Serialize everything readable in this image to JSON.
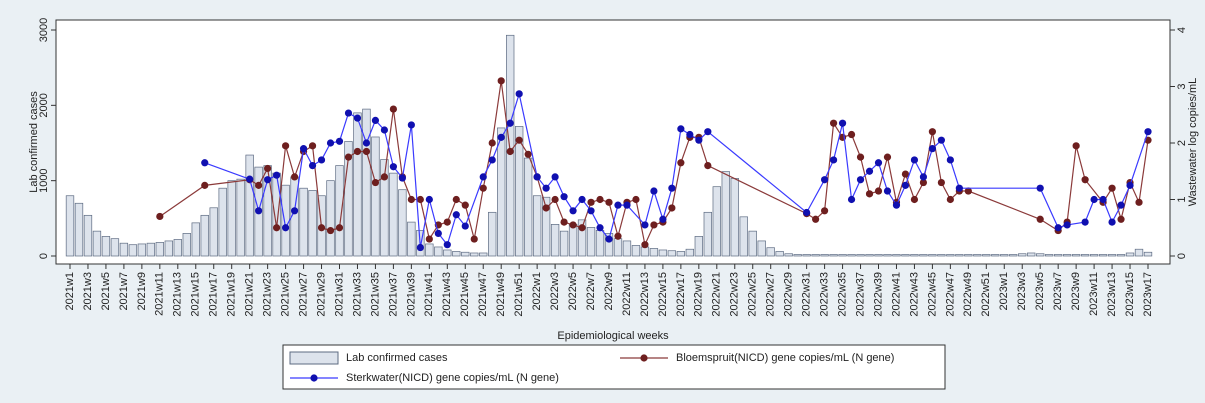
{
  "chart_data": {
    "type": "bar_line",
    "x_label": "Epidemiological weeks",
    "y_label": "Lab confirmed cases",
    "y2_label": "Wastewater log copies/mL",
    "legend": "bottom",
    "connect_gaps": true,
    "categories": [
      "2021w1",
      null,
      "2021w3",
      null,
      "2021w5",
      null,
      "2021w7",
      null,
      "2021w9",
      null,
      "2021w11",
      null,
      "2021w13",
      null,
      "2021w15",
      null,
      "2021w17",
      null,
      "2021w19",
      null,
      "2021w21",
      null,
      "2021w23",
      null,
      "2021w25",
      null,
      "2021w27",
      null,
      "2021w29",
      null,
      "2021w31",
      null,
      "2021w33",
      null,
      "2021w35",
      null,
      "2021w37",
      null,
      "2021w39",
      null,
      "2021w41",
      null,
      "2021w43",
      null,
      "2021w45",
      null,
      "2021w47",
      null,
      "2021w49",
      null,
      "2021w51",
      null,
      "2022w1",
      null,
      "2022w3",
      null,
      "2022w5",
      null,
      "2022w7",
      null,
      "2022w9",
      null,
      "2022w11",
      null,
      "2022w13",
      null,
      "2022w15",
      null,
      "2022w17",
      null,
      "2022w19",
      null,
      "2022w21",
      null,
      "2022w23",
      null,
      "2022w25",
      null,
      "2022w27",
      null,
      "2022w29",
      null,
      "2022w31",
      null,
      "2022w33",
      null,
      "2022w35",
      null,
      "2022w37",
      null,
      "2022w39",
      null,
      "2022w41",
      null,
      "2022w43",
      null,
      "2022w45",
      null,
      "2022w47",
      null,
      "2022w49",
      null,
      "2022w51",
      null,
      "2023w1",
      null,
      "2023w3",
      null,
      "2023w5",
      null,
      "2023w7",
      null,
      "2023w9",
      null,
      "2023w11",
      null,
      "2023w13",
      null,
      "2023w15",
      null,
      "2023w17"
    ],
    "series": [
      {
        "name": "Lab confirmed cases",
        "kind": "bar",
        "color": "#dde3ec",
        "edge": "#5d6b82",
        "values": [
          800,
          700,
          540,
          330,
          260,
          230,
          170,
          150,
          160,
          170,
          180,
          200,
          220,
          300,
          440,
          540,
          640,
          900,
          1000,
          1020,
          1340,
          1180,
          1200,
          1100,
          940,
          1050,
          900,
          870,
          800,
          1000,
          1200,
          1520,
          1900,
          1950,
          1580,
          1280,
          1100,
          880,
          450,
          340,
          160,
          120,
          80,
          60,
          50,
          40,
          40,
          580,
          1700,
          2930,
          1720,
          1300,
          800,
          780,
          420,
          330,
          420,
          480,
          380,
          340,
          300,
          230,
          200,
          140,
          120,
          100,
          80,
          70,
          60,
          90,
          260,
          580,
          920,
          1120,
          1030,
          520,
          330,
          200,
          110,
          60,
          30,
          20,
          20,
          20,
          20,
          20,
          20,
          20,
          20,
          20,
          20,
          20,
          20,
          20,
          20,
          20,
          20,
          20,
          20,
          20,
          20,
          20,
          20,
          20,
          20,
          20,
          30,
          40,
          30,
          20,
          20,
          20,
          20,
          20,
          20,
          20,
          20,
          20,
          40,
          90,
          50
        ]
      },
      {
        "name": "Bloemspruit(NICD) gene copies/mL (N gene)",
        "kind": "line",
        "axis": "y2",
        "color": "#8b3a3a",
        "marker": "#6e1f1f",
        "values": [
          null,
          null,
          null,
          null,
          null,
          null,
          null,
          null,
          null,
          null,
          0.7,
          null,
          null,
          null,
          null,
          1.25,
          null,
          null,
          null,
          null,
          1.35,
          1.25,
          1.55,
          0.5,
          1.95,
          1.4,
          1.85,
          1.95,
          0.5,
          0.45,
          0.5,
          1.75,
          1.85,
          1.85,
          1.3,
          1.4,
          2.6,
          1.4,
          1.0,
          1.0,
          0.3,
          0.55,
          0.6,
          1.0,
          0.9,
          0.3,
          1.2,
          2.0,
          3.1,
          1.85,
          2.05,
          1.8,
          1.4,
          0.85,
          1.0,
          0.6,
          0.55,
          0.5,
          0.95,
          1.0,
          0.95,
          0.35,
          0.95,
          1.0,
          0.2,
          0.55,
          0.6,
          0.85,
          1.65,
          2.1,
          2.1,
          1.6,
          null,
          null,
          null,
          null,
          null,
          null,
          null,
          null,
          null,
          null,
          0.75,
          0.65,
          0.8,
          2.35,
          2.1,
          2.15,
          1.75,
          1.1,
          1.15,
          1.75,
          0.95,
          1.45,
          1.0,
          1.3,
          2.2,
          1.3,
          1.0,
          1.15,
          1.15,
          null,
          null,
          null,
          null,
          null,
          null,
          null,
          0.65,
          null,
          0.45,
          0.6,
          1.95,
          1.35,
          null,
          0.95,
          1.2,
          0.65,
          1.3,
          0.95,
          2.05
        ]
      },
      {
        "name": "Sterkwater(NICD) gene copies/mL (N gene)",
        "kind": "line",
        "axis": "y2",
        "color": "#3a3aff",
        "marker": "#1010b0",
        "values": [
          null,
          null,
          null,
          null,
          null,
          null,
          null,
          null,
          null,
          null,
          null,
          null,
          null,
          null,
          null,
          1.65,
          null,
          null,
          null,
          null,
          1.36,
          0.8,
          1.35,
          1.43,
          0.5,
          0.8,
          1.9,
          1.6,
          1.7,
          2.0,
          2.03,
          2.53,
          2.44,
          2.0,
          2.4,
          2.23,
          1.58,
          1.38,
          2.32,
          0.15,
          1.0,
          0.4,
          0.2,
          0.73,
          0.53,
          null,
          1.4,
          1.7,
          2.1,
          2.35,
          2.87,
          null,
          1.4,
          1.2,
          1.4,
          1.05,
          0.8,
          1.0,
          0.8,
          0.5,
          0.3,
          0.9,
          0.9,
          null,
          0.55,
          1.15,
          0.65,
          1.2,
          2.25,
          2.15,
          2.05,
          2.2,
          null,
          null,
          null,
          null,
          null,
          null,
          null,
          null,
          null,
          null,
          0.77,
          null,
          1.35,
          1.7,
          2.35,
          1.0,
          1.35,
          1.5,
          1.65,
          1.15,
          0.9,
          1.25,
          1.7,
          1.4,
          1.9,
          2.05,
          1.7,
          1.2,
          null,
          null,
          null,
          null,
          null,
          null,
          null,
          null,
          1.2,
          null,
          0.5,
          0.55,
          null,
          0.6,
          1.0,
          1.0,
          0.6,
          0.9,
          1.25,
          null,
          2.2
        ]
      }
    ],
    "ylim": [
      0,
      3000
    ],
    "yticks": [
      0,
      1000,
      2000,
      3000
    ],
    "y2lim": [
      0,
      4
    ],
    "y2ticks": [
      0,
      1,
      2,
      3,
      4
    ]
  }
}
